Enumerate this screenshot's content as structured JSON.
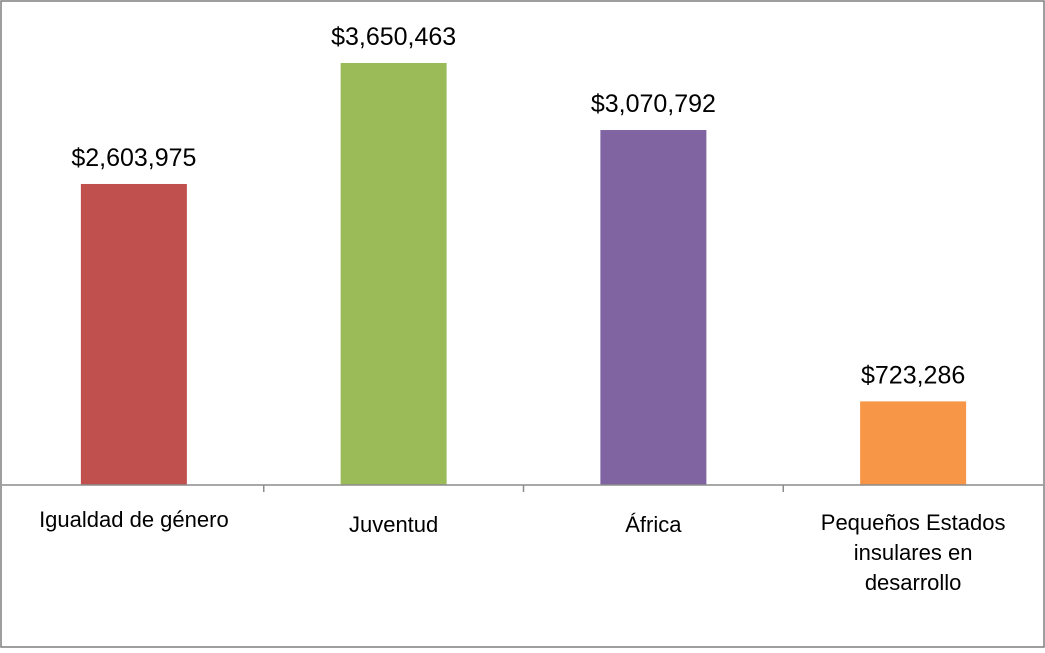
{
  "chart_data": {
    "type": "bar",
    "title": "",
    "xlabel": "",
    "ylabel": "",
    "categories": [
      [
        "Igualdad de género"
      ],
      [
        "Juventud"
      ],
      [
        "África"
      ],
      [
        "Pequeños Estados",
        "insulares en",
        "desarrollo"
      ]
    ],
    "values": [
      2603975,
      3650463,
      3070792,
      723286
    ],
    "value_labels": [
      "$2,603,975",
      "$3,650,463",
      "$3,070,792",
      "$723,286"
    ],
    "colors": [
      "#c0504d",
      "#9bbb59",
      "#8064a2",
      "#f79646"
    ],
    "ylim": [
      0,
      3650463
    ],
    "grid": false,
    "legend": "none"
  }
}
